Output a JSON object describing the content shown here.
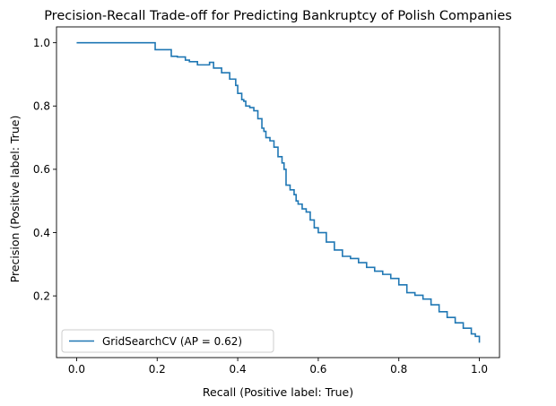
{
  "chart_data": {
    "type": "line",
    "title": "Precision-Recall Trade-off for Predicting Bankruptcy of Polish Companies",
    "xlabel": "Recall (Positive label: True)",
    "ylabel": "Precision (Positive label: True)",
    "xlim": [
      -0.05,
      1.05
    ],
    "ylim": [
      0.005,
      1.05
    ],
    "xticks": [
      0.0,
      0.2,
      0.4,
      0.6,
      0.8,
      1.0
    ],
    "xtick_labels": [
      "0.0",
      "0.2",
      "0.4",
      "0.6",
      "0.8",
      "1.0"
    ],
    "yticks": [
      0.2,
      0.4,
      0.6,
      0.8,
      1.0
    ],
    "ytick_labels": [
      "0.2",
      "0.4",
      "0.6",
      "0.8",
      "1.0"
    ],
    "grid": false,
    "legend": {
      "position": "lower-left",
      "entries": [
        "GridSearchCV (AP = 0.62)"
      ]
    },
    "series": [
      {
        "name": "GridSearchCV (AP = 0.62)",
        "color": "#1f77b4",
        "step": true,
        "x": [
          0.0,
          0.195,
          0.195,
          0.23,
          0.235,
          0.25,
          0.27,
          0.28,
          0.3,
          0.33,
          0.34,
          0.36,
          0.38,
          0.395,
          0.4,
          0.41,
          0.415,
          0.42,
          0.43,
          0.44,
          0.45,
          0.46,
          0.465,
          0.47,
          0.48,
          0.49,
          0.5,
          0.51,
          0.515,
          0.52,
          0.53,
          0.54,
          0.545,
          0.55,
          0.56,
          0.57,
          0.58,
          0.59,
          0.6,
          0.62,
          0.64,
          0.66,
          0.68,
          0.7,
          0.72,
          0.74,
          0.76,
          0.78,
          0.8,
          0.82,
          0.84,
          0.86,
          0.88,
          0.9,
          0.92,
          0.94,
          0.96,
          0.98,
          0.99,
          1.0
        ],
        "y": [
          1.0,
          1.0,
          0.978,
          0.978,
          0.957,
          0.955,
          0.945,
          0.94,
          0.93,
          0.938,
          0.92,
          0.905,
          0.885,
          0.865,
          0.84,
          0.82,
          0.815,
          0.8,
          0.795,
          0.785,
          0.76,
          0.73,
          0.72,
          0.7,
          0.69,
          0.67,
          0.64,
          0.62,
          0.6,
          0.55,
          0.535,
          0.52,
          0.5,
          0.49,
          0.475,
          0.465,
          0.44,
          0.415,
          0.4,
          0.37,
          0.345,
          0.325,
          0.318,
          0.305,
          0.29,
          0.278,
          0.268,
          0.255,
          0.235,
          0.21,
          0.202,
          0.19,
          0.172,
          0.15,
          0.132,
          0.115,
          0.098,
          0.08,
          0.072,
          0.052
        ]
      }
    ]
  }
}
